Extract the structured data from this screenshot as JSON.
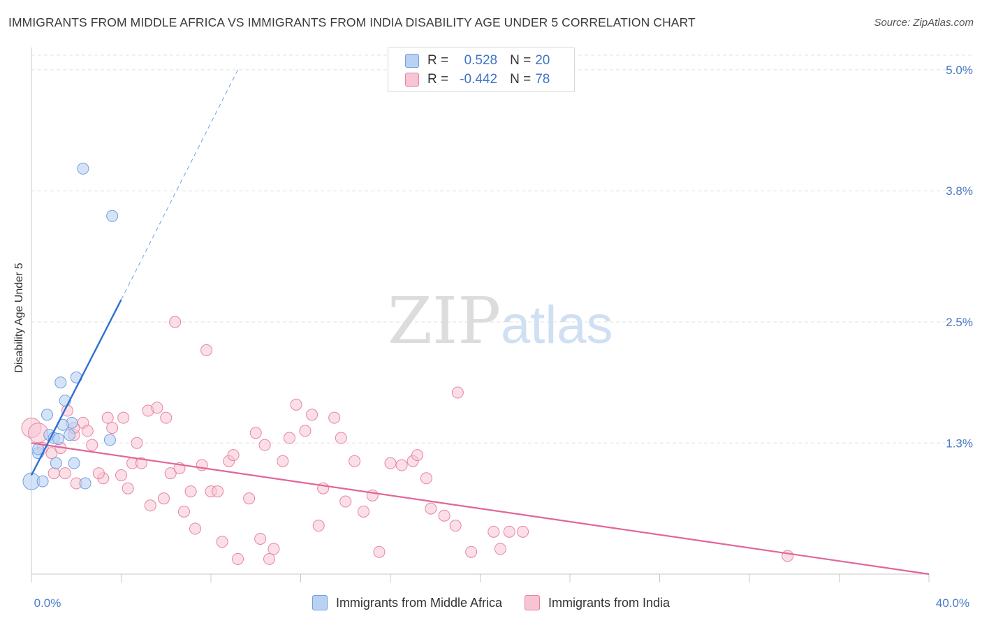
{
  "header": {
    "title": "IMMIGRANTS FROM MIDDLE AFRICA VS IMMIGRANTS FROM INDIA DISABILITY AGE UNDER 5 CORRELATION CHART",
    "source": "Source: ZipAtlas.com"
  },
  "watermark": {
    "zip": "ZIP",
    "atlas": "atlas"
  },
  "legend": {
    "r_label": "R =",
    "n_label": "N =",
    "series": [
      {
        "name": "Immigrants from Middle Africa",
        "r": "0.528",
        "n": "20",
        "color": "#6f9fe0",
        "fill": "#b9d1f3"
      },
      {
        "name": "Immigrants from India",
        "r": "-0.442",
        "n": "78",
        "color": "#e983a3",
        "fill": "#f7c4d4"
      }
    ]
  },
  "chart_data": {
    "type": "scatter",
    "title": "IMMIGRANTS FROM MIDDLE AFRICA VS IMMIGRANTS FROM INDIA DISABILITY AGE UNDER 5 CORRELATION CHART",
    "xlabel": "",
    "ylabel": "Disability Age Under 5",
    "xlim": [
      0,
      40
    ],
    "ylim": [
      0,
      5.2
    ],
    "x_tick_labels": [
      "0.0%",
      "40.0%"
    ],
    "y_ticks": [
      1.3,
      2.5,
      3.8,
      5.0
    ],
    "y_tick_labels": [
      "1.3%",
      "2.5%",
      "3.8%",
      "5.0%"
    ],
    "grid": true,
    "series": [
      {
        "name": "Immigrants from Middle Africa",
        "color": "#6f9fe0",
        "points": [
          [
            0.0,
            0.92
          ],
          [
            0.5,
            0.92
          ],
          [
            2.4,
            0.9
          ],
          [
            0.3,
            1.2
          ],
          [
            0.3,
            1.24
          ],
          [
            0.8,
            1.38
          ],
          [
            1.0,
            1.35
          ],
          [
            1.7,
            1.38
          ],
          [
            1.1,
            1.1
          ],
          [
            1.9,
            1.1
          ],
          [
            0.7,
            1.58
          ],
          [
            1.5,
            1.72
          ],
          [
            1.3,
            1.9
          ],
          [
            2.0,
            1.95
          ],
          [
            2.3,
            4.02
          ],
          [
            3.6,
            3.55
          ],
          [
            1.2,
            1.34
          ],
          [
            1.8,
            1.5
          ],
          [
            1.4,
            1.48
          ],
          [
            3.5,
            1.33
          ]
        ],
        "trendline": {
          "x": [
            0.0,
            4.0
          ],
          "y": [
            0.98,
            2.72
          ],
          "dashed_to": [
            9.2,
            5.0
          ]
        }
      },
      {
        "name": "Immigrants from India",
        "color": "#e983a3",
        "points": [
          [
            0.0,
            1.45
          ],
          [
            0.3,
            1.4
          ],
          [
            0.5,
            1.25
          ],
          [
            0.9,
            1.2
          ],
          [
            1.3,
            1.25
          ],
          [
            1.0,
            1.0
          ],
          [
            1.5,
            1.0
          ],
          [
            2.0,
            0.9
          ],
          [
            1.6,
            1.62
          ],
          [
            1.9,
            1.38
          ],
          [
            2.3,
            1.5
          ],
          [
            2.5,
            1.42
          ],
          [
            2.7,
            1.28
          ],
          [
            3.2,
            0.95
          ],
          [
            3.0,
            1.0
          ],
          [
            3.4,
            1.55
          ],
          [
            3.6,
            1.45
          ],
          [
            4.0,
            0.98
          ],
          [
            4.1,
            1.55
          ],
          [
            4.3,
            0.85
          ],
          [
            4.5,
            1.1
          ],
          [
            4.7,
            1.3
          ],
          [
            4.9,
            1.1
          ],
          [
            5.2,
            1.62
          ],
          [
            5.3,
            0.68
          ],
          [
            5.6,
            1.65
          ],
          [
            5.9,
            0.75
          ],
          [
            6.0,
            1.55
          ],
          [
            6.2,
            1.0
          ],
          [
            6.4,
            2.5
          ],
          [
            6.6,
            1.05
          ],
          [
            6.8,
            0.62
          ],
          [
            7.1,
            0.82
          ],
          [
            7.3,
            0.45
          ],
          [
            7.6,
            1.08
          ],
          [
            7.8,
            2.22
          ],
          [
            8.0,
            0.82
          ],
          [
            8.3,
            0.82
          ],
          [
            8.5,
            0.32
          ],
          [
            8.8,
            1.12
          ],
          [
            9.0,
            1.18
          ],
          [
            9.2,
            0.15
          ],
          [
            9.7,
            0.75
          ],
          [
            10.0,
            1.4
          ],
          [
            10.2,
            0.35
          ],
          [
            10.4,
            1.28
          ],
          [
            10.6,
            0.15
          ],
          [
            10.8,
            0.25
          ],
          [
            11.2,
            1.12
          ],
          [
            11.5,
            1.35
          ],
          [
            11.8,
            1.68
          ],
          [
            12.2,
            1.42
          ],
          [
            12.5,
            1.58
          ],
          [
            12.8,
            0.48
          ],
          [
            13.0,
            0.85
          ],
          [
            13.5,
            1.55
          ],
          [
            13.8,
            1.35
          ],
          [
            14.0,
            0.72
          ],
          [
            14.4,
            1.12
          ],
          [
            14.8,
            0.62
          ],
          [
            15.2,
            0.78
          ],
          [
            15.5,
            0.22
          ],
          [
            16.0,
            1.1
          ],
          [
            16.5,
            1.08
          ],
          [
            17.0,
            1.12
          ],
          [
            17.2,
            1.18
          ],
          [
            17.6,
            0.95
          ],
          [
            17.8,
            0.65
          ],
          [
            18.4,
            0.58
          ],
          [
            18.9,
            0.48
          ],
          [
            19.0,
            1.8
          ],
          [
            19.6,
            0.22
          ],
          [
            20.6,
            0.42
          ],
          [
            20.9,
            0.25
          ],
          [
            21.3,
            0.42
          ],
          [
            21.9,
            0.42
          ],
          [
            33.7,
            0.18
          ],
          [
            1.9,
            1.45
          ]
        ],
        "trendline": {
          "x": [
            0.0,
            40.0
          ],
          "y": [
            1.3,
            0.0
          ]
        }
      }
    ]
  }
}
